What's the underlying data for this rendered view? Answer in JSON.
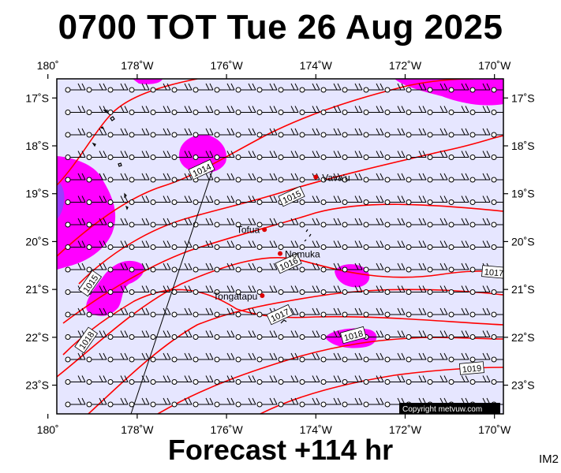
{
  "header": {
    "title": "0700 TOT Tue 26 Aug 2025"
  },
  "footer": {
    "forecast": "Forecast +114 hr",
    "code": "IM2"
  },
  "map": {
    "lon_range": [
      -179.8,
      -169.8
    ],
    "lat_range": [
      -23.6,
      -16.6
    ],
    "lon_ticks": [
      {
        "value": -180,
        "label": "180˚"
      },
      {
        "value": -178,
        "label": "178˚W"
      },
      {
        "value": -176,
        "label": "176˚W"
      },
      {
        "value": -174,
        "label": "174˚W"
      },
      {
        "value": -172,
        "label": "172˚W"
      },
      {
        "value": -170,
        "label": "170˚W"
      }
    ],
    "lat_ticks": [
      {
        "value": -17,
        "label": "17˚S"
      },
      {
        "value": -18,
        "label": "18˚S"
      },
      {
        "value": -19,
        "label": "19˚S"
      },
      {
        "value": -20,
        "label": "20˚S"
      },
      {
        "value": -21,
        "label": "21˚S"
      },
      {
        "value": -22,
        "label": "22˚S"
      },
      {
        "value": -23,
        "label": "23˚S"
      }
    ],
    "colors": {
      "sea": "#e6e6ff",
      "precip": "#ff00ff",
      "precip_heavy": "#9a3cff",
      "isobar": "#ff0000",
      "place": "#dd0000"
    },
    "places": [
      {
        "name": "Vava'u",
        "lon": -174.0,
        "lat": -18.65
      },
      {
        "name": "Tofua",
        "lon": -175.15,
        "lat": -19.75
      },
      {
        "name": "Nomuka",
        "lon": -174.8,
        "lat": -20.25
      },
      {
        "name": "Tongatapu",
        "lon": -175.2,
        "lat": -21.13
      }
    ],
    "isobar_labels": [
      "1014",
      "1015",
      "1016",
      "1015",
      "1017",
      "1018",
      "1018",
      "1019",
      "1017"
    ],
    "wind": {
      "symbol": "barbs",
      "prevailing_from": "east",
      "speed_knots": 20
    },
    "copyright": "Copyright metvuw.com"
  }
}
